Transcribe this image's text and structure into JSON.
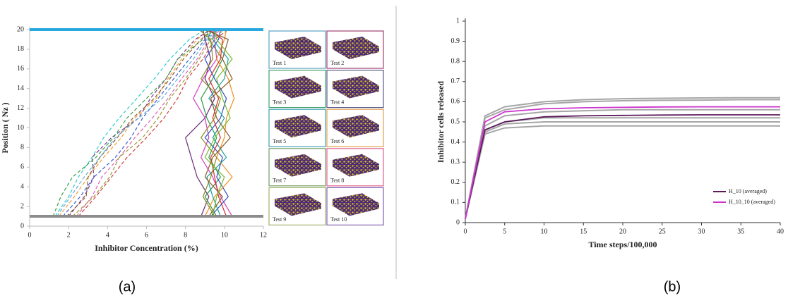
{
  "captions": [
    "(a)",
    "(b)"
  ],
  "chart_data": [
    {
      "type": "line",
      "x_label": "Inhibitor Concentration (%)",
      "y_label": "Position ( Nz )",
      "xlim": [
        0,
        12
      ],
      "xticks": [
        0,
        2,
        4,
        6,
        8,
        10,
        12
      ],
      "ylim": [
        0,
        20
      ],
      "yticks": [
        0,
        2,
        4,
        6,
        8,
        10,
        12,
        14,
        16,
        18,
        20
      ],
      "y": [
        1,
        3,
        5,
        7,
        9,
        11,
        13,
        15,
        17,
        19,
        20
      ],
      "hlines": [
        {
          "value": 20,
          "color": "#29a8e0"
        },
        {
          "value": 1,
          "color": "#8c8c8c"
        }
      ],
      "series": [
        {
          "color": "#33cccc",
          "dash": true,
          "values": [
            1.3,
            2.0,
            2.5,
            3.2,
            3.8,
            4.6,
            5.5,
            6.4,
            7.2,
            8.2,
            9.0
          ]
        },
        {
          "color": "#f0a030",
          "dash": true,
          "values": [
            1.5,
            2.3,
            3.0,
            3.8,
            4.7,
            5.4,
            6.5,
            7.1,
            7.8,
            8.6,
            9.2
          ]
        },
        {
          "color": "#7a3a8a",
          "dash": true,
          "values": [
            2.0,
            2.8,
            3.3,
            3.2,
            4.2,
            5.6,
            6.2,
            7.0,
            7.6,
            8.5,
            9.3
          ]
        },
        {
          "color": "#3aa04a",
          "dash": true,
          "values": [
            1.2,
            1.6,
            2.2,
            3.4,
            4.3,
            5.0,
            6.0,
            7.0,
            7.6,
            8.9,
            9.5
          ]
        },
        {
          "color": "#3a5fcd",
          "dash": true,
          "values": [
            1.7,
            2.6,
            3.3,
            4.4,
            5.2,
            5.8,
            6.6,
            7.4,
            8.2,
            9.0,
            9.6
          ]
        },
        {
          "color": "#e060b0",
          "dash": true,
          "values": [
            2.4,
            3.2,
            3.7,
            4.6,
            5.4,
            6.3,
            7.1,
            7.8,
            8.6,
            9.2,
            9.8
          ]
        },
        {
          "color": "#8b5a2b",
          "dash": true,
          "values": [
            1.9,
            2.9,
            3.0,
            3.6,
            4.5,
            5.3,
            6.4,
            7.2,
            7.9,
            8.8,
            9.4
          ]
        },
        {
          "color": "#9a9a30",
          "dash": true,
          "values": [
            2.2,
            3.3,
            4.1,
            4.6,
            5.8,
            6.6,
            7.2,
            8.0,
            8.7,
            9.3,
            10.0
          ]
        },
        {
          "color": "#60b0e0",
          "dash": true,
          "values": [
            1.4,
            2.1,
            2.8,
            3.6,
            4.4,
            5.6,
            6.8,
            7.6,
            8.4,
            9.1,
            9.7
          ]
        },
        {
          "color": "#d04040",
          "dash": true,
          "values": [
            2.5,
            3.4,
            4.2,
            5.0,
            6.0,
            6.9,
            7.6,
            8.1,
            8.9,
            9.5,
            10.2
          ]
        },
        {
          "color": "#6a2a7a",
          "dash": false,
          "values": [
            8.8,
            9.2,
            8.6,
            8.3,
            8.0,
            9.0,
            9.5,
            9.0,
            9.3,
            9.0,
            8.9
          ]
        },
        {
          "color": "#2a9a4a",
          "dash": false,
          "values": [
            9.6,
            9.0,
            9.8,
            9.2,
            9.6,
            9.1,
            8.8,
            9.4,
            9.9,
            9.2,
            9.1
          ]
        },
        {
          "color": "#d040c0",
          "dash": false,
          "values": [
            10.4,
            9.8,
            9.4,
            8.8,
            9.2,
            9.0,
            8.4,
            8.9,
            9.6,
            9.5,
            9.4
          ]
        },
        {
          "color": "#3050c0",
          "dash": false,
          "values": [
            9.3,
            10.2,
            9.6,
            9.9,
            9.0,
            9.8,
            10.1,
            9.5,
            9.0,
            9.7,
            9.8
          ]
        },
        {
          "color": "#f09020",
          "dash": false,
          "values": [
            9.0,
            9.5,
            10.4,
            9.6,
            10.0,
            10.1,
            10.5,
            10.2,
            9.6,
            10.0,
            10.1
          ]
        },
        {
          "color": "#20a0a0",
          "dash": false,
          "values": [
            9.8,
            9.4,
            9.1,
            10.1,
            9.4,
            10.0,
            9.2,
            10.0,
            10.2,
            9.4,
            9.6
          ]
        },
        {
          "color": "#d03030",
          "dash": false,
          "values": [
            10.1,
            9.7,
            9.5,
            9.3,
            9.8,
            9.4,
            9.7,
            9.2,
            9.8,
            9.9,
            9.2
          ]
        },
        {
          "color": "#8a8a20",
          "dash": false,
          "values": [
            9.5,
            8.9,
            9.3,
            9.6,
            8.8,
            9.5,
            9.8,
            8.8,
            9.4,
            9.3,
            8.7
          ]
        },
        {
          "color": "#8b5a2b",
          "dash": false,
          "values": [
            9.2,
            9.9,
            9.0,
            9.4,
            10.3,
            9.6,
            9.3,
            10.4,
            9.9,
            10.2,
            9.0
          ]
        },
        {
          "color": "#70c030",
          "dash": false,
          "values": [
            9.4,
            9.6,
            10.0,
            9.0,
            9.5,
            10.3,
            9.9,
            9.6,
            10.4,
            9.6,
            9.5
          ]
        }
      ],
      "thumbnails": [
        {
          "label": "Test 1",
          "color": "#5aa0c0"
        },
        {
          "label": "Test 2",
          "color": "#a04070"
        },
        {
          "label": "Test 3",
          "color": "#40a070"
        },
        {
          "label": "Test 4",
          "color": "#5a5a8a"
        },
        {
          "label": "Test 5",
          "color": "#40a0b0"
        },
        {
          "label": "Test 6",
          "color": "#e0a050"
        },
        {
          "label": "Test 7",
          "color": "#70a060"
        },
        {
          "label": "Test 8",
          "color": "#e06090"
        },
        {
          "label": "Test 9",
          "color": "#a0b070"
        },
        {
          "label": "Test 10",
          "color": "#8060b0"
        }
      ]
    },
    {
      "type": "line",
      "x_label": "Time steps/100,000",
      "y_label": "Inhibitor cells released",
      "xlim": [
        0,
        40
      ],
      "xticks": [
        0,
        5,
        10,
        15,
        20,
        25,
        30,
        35,
        40
      ],
      "ylim": [
        0,
        1
      ],
      "yticks": [
        0,
        0.1,
        0.2,
        0.3,
        0.4,
        0.5,
        0.6,
        0.7,
        0.8,
        0.9,
        1
      ],
      "x": [
        0,
        2.5,
        5,
        10,
        15,
        20,
        25,
        30,
        35,
        40
      ],
      "legend": "lower right",
      "series": [
        {
          "color": "#a6a6a6",
          "values": [
            0.02,
            0.53,
            0.575,
            0.6,
            0.61,
            0.615,
            0.617,
            0.619,
            0.62,
            0.62
          ]
        },
        {
          "color": "#a6a6a6",
          "values": [
            0.02,
            0.52,
            0.56,
            0.59,
            0.6,
            0.605,
            0.607,
            0.608,
            0.61,
            0.61
          ]
        },
        {
          "color": "#a6a6a6",
          "values": [
            0.02,
            0.48,
            0.53,
            0.55,
            0.555,
            0.56,
            0.56,
            0.56,
            0.56,
            0.56
          ]
        },
        {
          "color": "#a6a6a6",
          "values": [
            0.02,
            0.46,
            0.5,
            0.52,
            0.52,
            0.52,
            0.52,
            0.52,
            0.52,
            0.52
          ]
        },
        {
          "color": "#a6a6a6",
          "values": [
            0.02,
            0.45,
            0.49,
            0.5,
            0.5,
            0.5,
            0.5,
            0.5,
            0.5,
            0.5
          ]
        },
        {
          "color": "#a6a6a6",
          "values": [
            0.02,
            0.44,
            0.47,
            0.48,
            0.48,
            0.48,
            0.48,
            0.48,
            0.48,
            0.48
          ]
        },
        {
          "name": "H_10 (averaged)",
          "color": "#5b1a5b",
          "values": [
            0.02,
            0.46,
            0.5,
            0.525,
            0.53,
            0.532,
            0.534,
            0.535,
            0.535,
            0.535
          ]
        },
        {
          "name": "H_10_10 (averaged)",
          "color": "#cc33cc",
          "values": [
            0.02,
            0.5,
            0.55,
            0.565,
            0.57,
            0.572,
            0.574,
            0.575,
            0.575,
            0.575
          ]
        }
      ]
    }
  ]
}
